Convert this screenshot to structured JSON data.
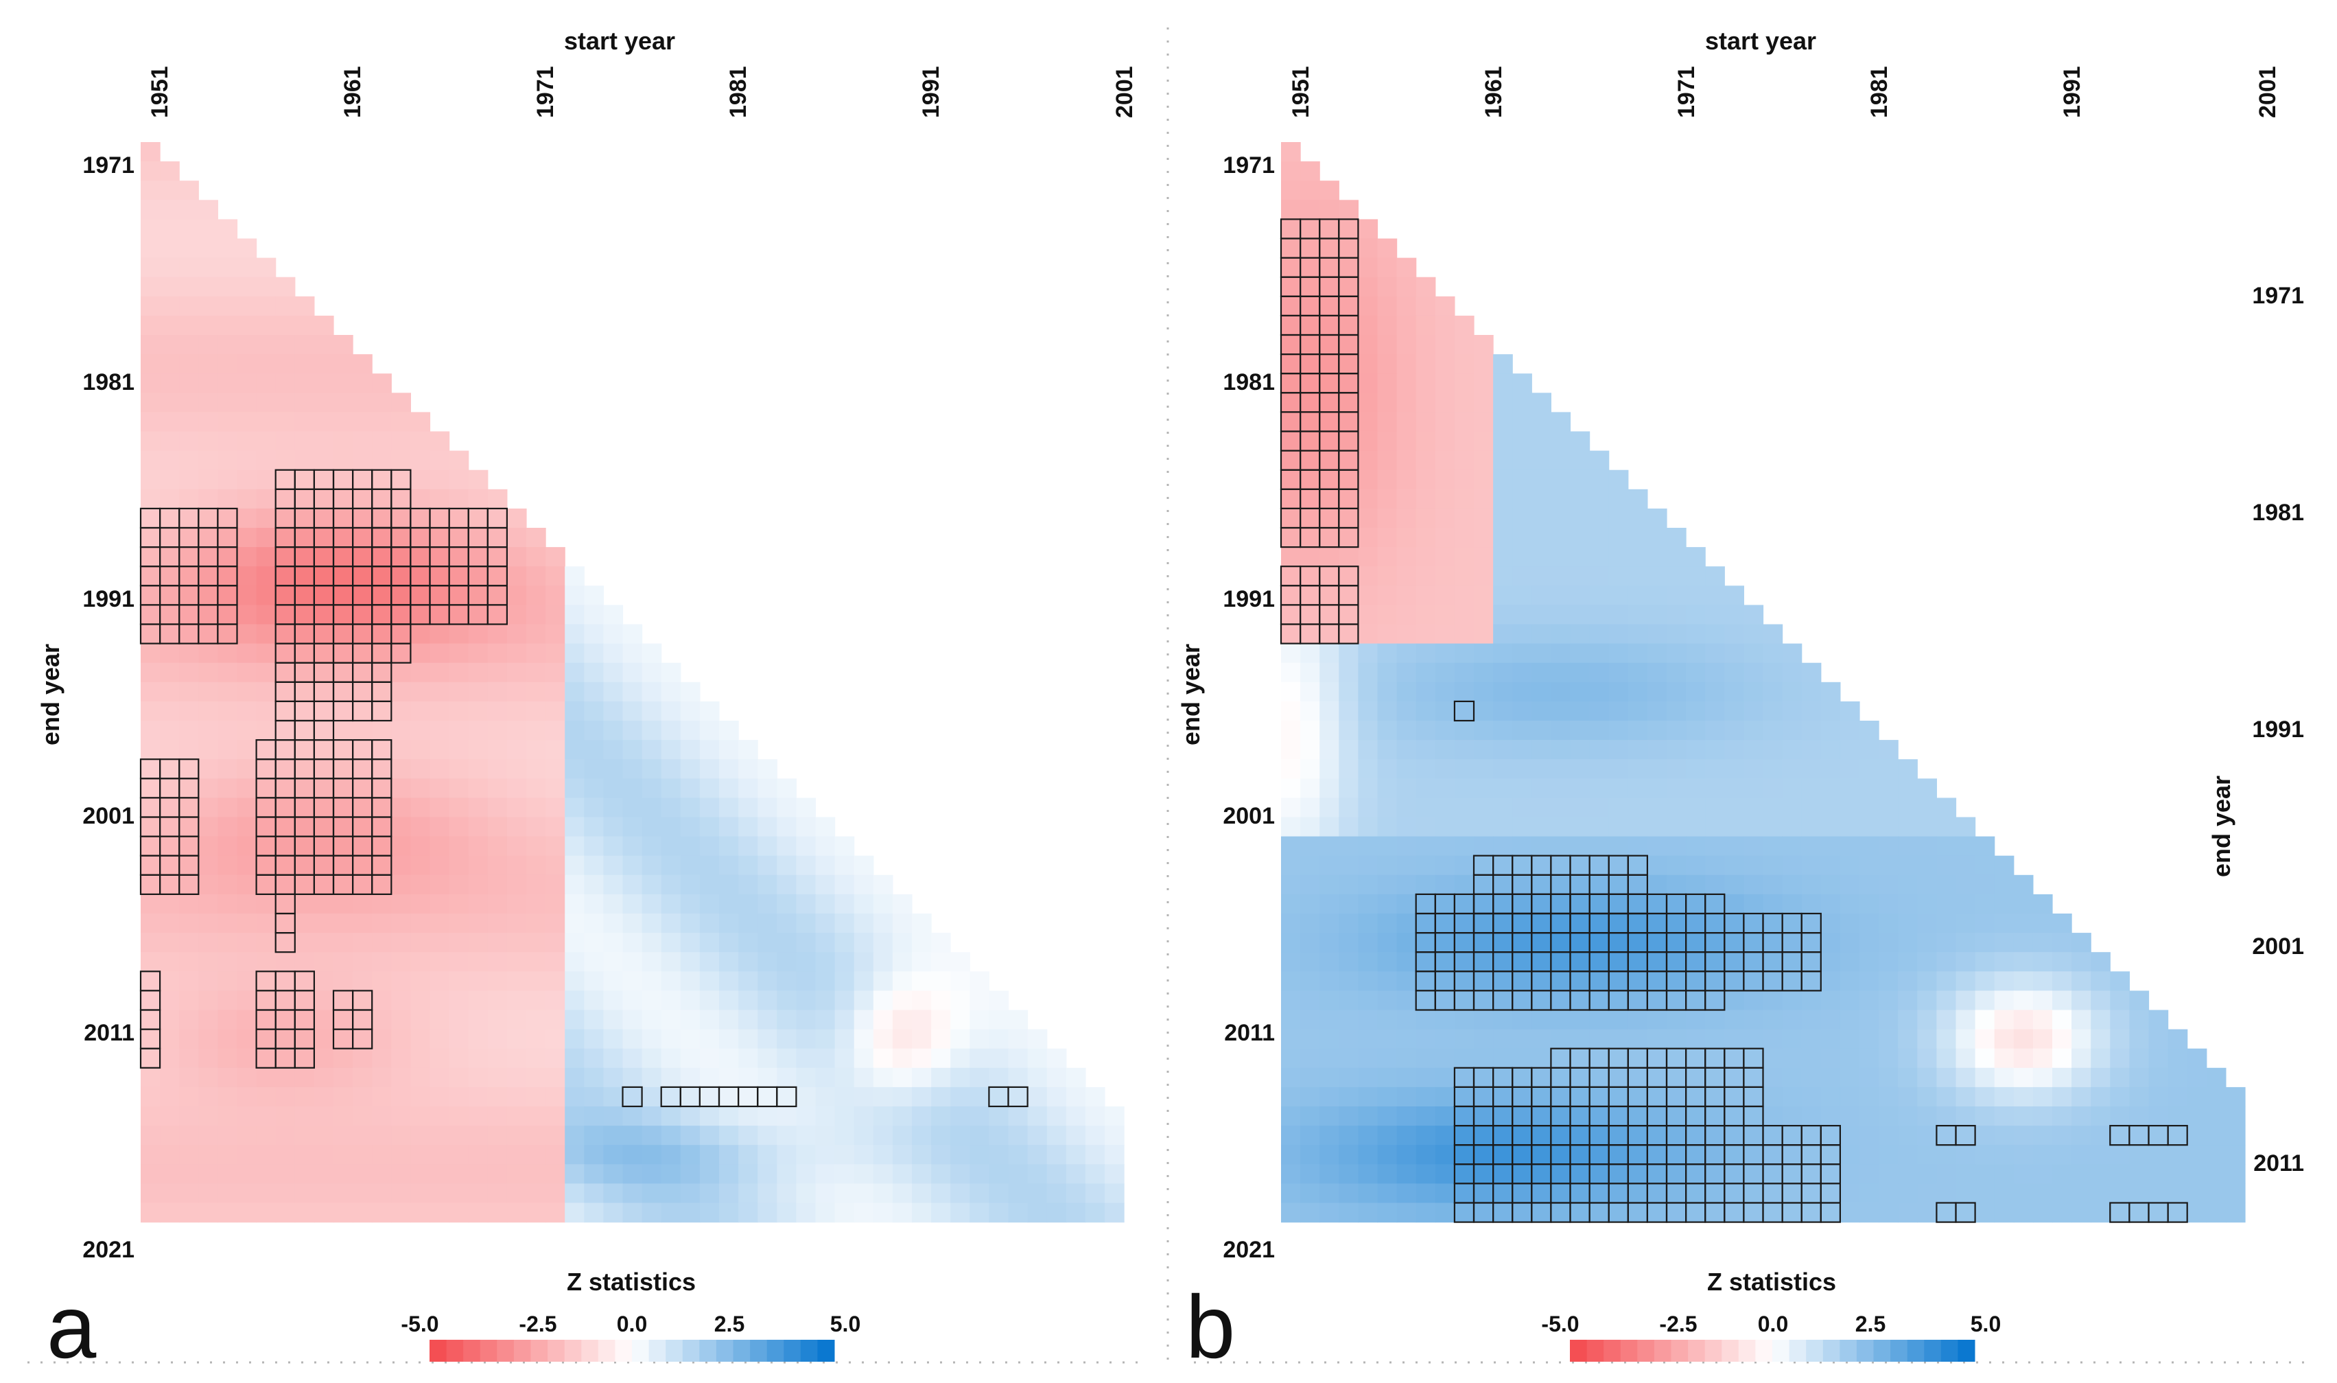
{
  "chart_data": [
    {
      "type": "heatmap",
      "panel": "a",
      "title": "",
      "xlabel": "start year",
      "ylabel": "end year",
      "x_ticks": [
        "1951",
        "1961",
        "1971",
        "1981",
        "1991",
        "2001"
      ],
      "y_ticks": [
        "1971",
        "1981",
        "1991",
        "2001",
        "2011",
        "2021"
      ],
      "colorbar": {
        "title": "Z statistics",
        "ticks": [
          "-5.0",
          "-2.5",
          "0.0",
          "2.5",
          "5.0"
        ],
        "range": [
          -5.0,
          5.0
        ]
      },
      "xlim": [
        1951,
        2001
      ],
      "ylim": [
        1971,
        2021
      ],
      "values": "trend test Z statistic for each (start year, end year) window; mostly -1.5 to -3.5 for start years 1951-1970 with significant cells around end years 1985-1991, 1997-2004 and 2010-2013; weakly positive (0.5-2) for start years after 1972"
    },
    {
      "type": "heatmap",
      "panel": "b",
      "title": "",
      "xlabel": "start year",
      "ylabel": "end year",
      "x_ticks": [
        "1951",
        "1961",
        "1971",
        "1981",
        "1991",
        "2001"
      ],
      "y_ticks": [
        "1971",
        "1981",
        "1991",
        "2001",
        "2011",
        "2021"
      ],
      "right_y_ticks": [
        "1971",
        "1981",
        "1991",
        "2001",
        "2011"
      ],
      "colorbar": {
        "title": "Z statistics",
        "ticks": [
          "-5.0",
          "-2.5",
          "0.0",
          "2.5",
          "5.0"
        ],
        "range": [
          -5.0,
          5.0
        ]
      },
      "xlim": [
        1951,
        2001
      ],
      "ylim": [
        1971,
        2021
      ],
      "values": "negative Z (-2 to -3) for start years 1951-1955 with end years 1969-1990; positive Z (2-4.5) for start years 1958-1985 with end years 2004-2021, significant blocks around end years 2003-2009 and 2013-2021"
    }
  ],
  "panels": {
    "a": {
      "letter": "a"
    },
    "b": {
      "letter": "b"
    }
  }
}
